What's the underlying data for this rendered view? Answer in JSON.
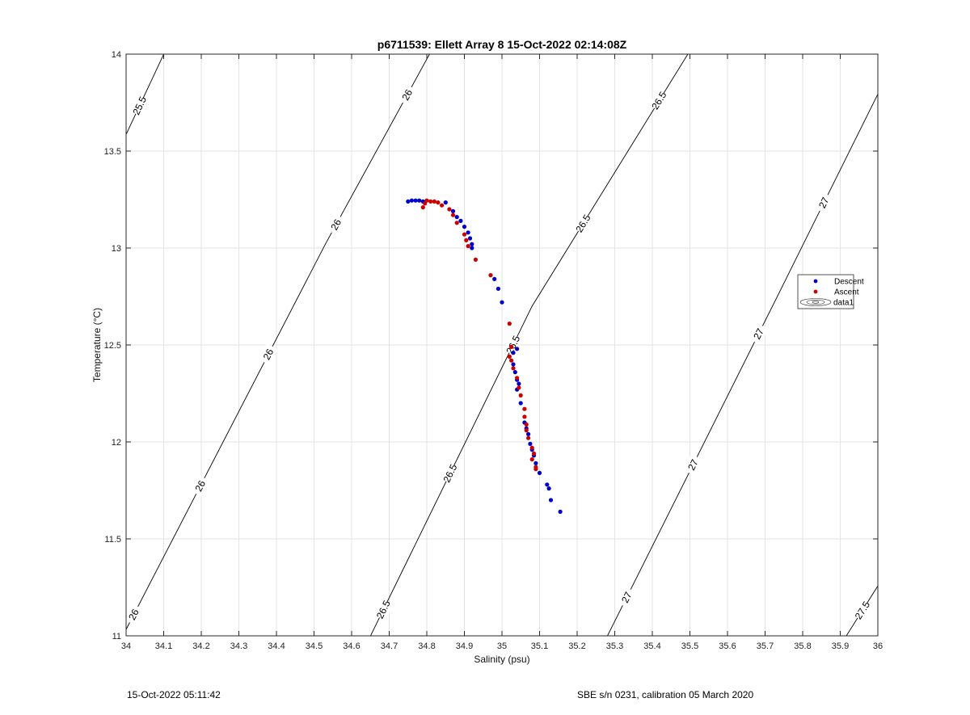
{
  "chart_data": {
    "type": "scatter",
    "title": "p6711539: Ellett Array 8 15-Oct-2022 02:14:08Z",
    "xlabel": "Salinity (psu)",
    "ylabel": "Temperature (°C)",
    "xlim": [
      34,
      36
    ],
    "ylim": [
      11,
      14
    ],
    "xticks": [
      34,
      34.1,
      34.2,
      34.3,
      34.4,
      34.5,
      34.6,
      34.7,
      34.8,
      34.9,
      35,
      35.1,
      35.2,
      35.3,
      35.4,
      35.5,
      35.6,
      35.7,
      35.8,
      35.9,
      36
    ],
    "yticks": [
      11,
      11.5,
      12,
      12.5,
      13,
      13.5,
      14
    ],
    "grid": true,
    "legend_position": "right",
    "series": [
      {
        "name": "Descent",
        "color": "#0000cc",
        "points": [
          [
            34.75,
            13.24
          ],
          [
            34.76,
            13.245
          ],
          [
            34.77,
            13.245
          ],
          [
            34.78,
            13.245
          ],
          [
            34.79,
            13.24
          ],
          [
            34.85,
            13.235
          ],
          [
            34.87,
            13.19
          ],
          [
            34.88,
            13.16
          ],
          [
            34.89,
            13.14
          ],
          [
            34.9,
            13.11
          ],
          [
            34.91,
            13.08
          ],
          [
            34.915,
            13.05
          ],
          [
            34.92,
            13.02
          ],
          [
            34.92,
            13.0
          ],
          [
            34.98,
            12.84
          ],
          [
            34.99,
            12.79
          ],
          [
            35.0,
            12.72
          ],
          [
            35.04,
            12.48
          ],
          [
            35.03,
            12.46
          ],
          [
            35.03,
            12.4
          ],
          [
            35.035,
            12.36
          ],
          [
            35.04,
            12.32
          ],
          [
            35.045,
            12.3
          ],
          [
            35.04,
            12.27
          ],
          [
            35.05,
            12.2
          ],
          [
            35.06,
            12.1
          ],
          [
            35.065,
            12.07
          ],
          [
            35.07,
            12.04
          ],
          [
            35.075,
            11.99
          ],
          [
            35.08,
            11.96
          ],
          [
            35.085,
            11.93
          ],
          [
            35.09,
            11.89
          ],
          [
            35.1,
            11.84
          ],
          [
            35.12,
            11.78
          ],
          [
            35.125,
            11.76
          ],
          [
            35.13,
            11.7
          ],
          [
            35.155,
            11.64
          ]
        ]
      },
      {
        "name": "Ascent",
        "color": "#cc0000",
        "points": [
          [
            34.79,
            13.21
          ],
          [
            34.795,
            13.23
          ],
          [
            34.8,
            13.245
          ],
          [
            34.81,
            13.24
          ],
          [
            34.82,
            13.24
          ],
          [
            34.83,
            13.235
          ],
          [
            34.84,
            13.22
          ],
          [
            34.86,
            13.2
          ],
          [
            34.87,
            13.17
          ],
          [
            34.88,
            13.13
          ],
          [
            34.9,
            13.07
          ],
          [
            34.905,
            13.04
          ],
          [
            34.91,
            13.01
          ],
          [
            34.93,
            12.94
          ],
          [
            34.97,
            12.86
          ],
          [
            35.02,
            12.61
          ],
          [
            35.025,
            12.49
          ],
          [
            35.02,
            12.44
          ],
          [
            35.025,
            12.42
          ],
          [
            35.03,
            12.38
          ],
          [
            35.04,
            12.33
          ],
          [
            35.045,
            12.28
          ],
          [
            35.05,
            12.24
          ],
          [
            35.06,
            12.17
          ],
          [
            35.06,
            12.13
          ],
          [
            35.065,
            12.09
          ],
          [
            35.065,
            12.06
          ],
          [
            35.07,
            12.02
          ],
          [
            35.08,
            11.97
          ],
          [
            35.085,
            11.94
          ],
          [
            35.08,
            11.91
          ],
          [
            35.09,
            11.87
          ],
          [
            35.09,
            11.86
          ]
        ]
      }
    ],
    "legend": [
      {
        "label": "Descent",
        "color": "#0000cc"
      },
      {
        "label": "Ascent",
        "color": "#cc0000"
      },
      {
        "label": "data1",
        "color": "#000000"
      }
    ],
    "contours": [
      {
        "level": "25.5",
        "points": [
          [
            33.96,
            13.42
          ],
          [
            34.11,
            14.04
          ]
        ],
        "labels": [
          {
            "x": 34.04,
            "y": 13.73
          }
        ]
      },
      {
        "level": "26",
        "points": [
          [
            33.97,
            10.92
          ],
          [
            34.53,
            13.02
          ],
          [
            34.83,
            14.08
          ]
        ],
        "labels": [
          {
            "x": 34.03,
            "y": 11.1
          },
          {
            "x": 34.19,
            "y": 11.78
          },
          {
            "x": 34.36,
            "y": 12.47
          },
          {
            "x": 34.54,
            "y": 13.14
          },
          {
            "x": 34.71,
            "y": 13.83
          }
        ]
      },
      {
        "level": "26.5",
        "points": [
          [
            34.63,
            10.92
          ],
          [
            35.08,
            12.7
          ],
          [
            35.52,
            14.08
          ]
        ],
        "labels": [
          {
            "x": 34.69,
            "y": 11.13
          },
          {
            "x": 34.86,
            "y": 11.84
          },
          {
            "x": 35.01,
            "y": 12.52
          },
          {
            "x": 35.18,
            "y": 13.17
          },
          {
            "x": 35.36,
            "y": 13.83
          }
        ]
      },
      {
        "level": "27",
        "points": [
          [
            35.26,
            10.92
          ],
          [
            35.73,
            12.74
          ],
          [
            36.04,
            13.95
          ]
        ],
        "labels": [
          {
            "x": 35.34,
            "y": 11.19
          },
          {
            "x": 35.51,
            "y": 11.88
          },
          {
            "x": 35.68,
            "y": 12.56
          },
          {
            "x": 35.86,
            "y": 13.23
          }
        ]
      },
      {
        "level": "27.5",
        "points": [
          [
            35.89,
            10.92
          ],
          [
            36.04,
            11.38
          ]
        ],
        "labels": [
          {
            "x": 35.96,
            "y": 11.13
          }
        ]
      }
    ]
  },
  "footer": {
    "left": "15-Oct-2022 05:11:42",
    "right": "SBE s/n 0231, calibration 05 March 2020"
  }
}
